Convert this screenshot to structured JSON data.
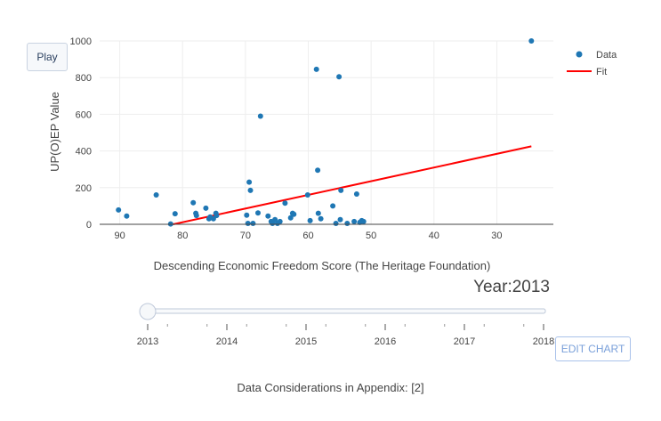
{
  "controls": {
    "play_label": "Play",
    "edit_chart_label": "EDIT CHART"
  },
  "footnote": "Data Considerations in Appendix: [2]",
  "slider": {
    "current_label": "Year:2013",
    "ticks": [
      "2013",
      "2014",
      "2015",
      "2016",
      "2017",
      "2018"
    ],
    "value": "2013"
  },
  "chart_data": {
    "type": "scatter",
    "xlabel": "Descending Economic Freedom Score (The Heritage Foundation)",
    "ylabel": "UP(O)EP Value",
    "xlim": [
      93.2,
      21
    ],
    "ylim": [
      0,
      1000
    ],
    "x_reversed": true,
    "grid": true,
    "legend_position": "top-right",
    "x_ticks": [
      90,
      80,
      70,
      60,
      50,
      40,
      30
    ],
    "y_ticks": [
      0,
      200,
      400,
      600,
      800,
      1000
    ],
    "colors": {
      "data": "#1f77b4",
      "fit": "#ff0000"
    },
    "series": [
      {
        "name": "Data",
        "mode": "markers",
        "points": [
          [
            90.2,
            78
          ],
          [
            88.9,
            45
          ],
          [
            84.2,
            160
          ],
          [
            81.9,
            2
          ],
          [
            81.2,
            58
          ],
          [
            78.3,
            118
          ],
          [
            77.9,
            60
          ],
          [
            77.8,
            48
          ],
          [
            76.3,
            88
          ],
          [
            75.8,
            30
          ],
          [
            75.6,
            40
          ],
          [
            75.1,
            30
          ],
          [
            74.7,
            60
          ],
          [
            74.6,
            48
          ],
          [
            69.8,
            50
          ],
          [
            69.6,
            5
          ],
          [
            69.4,
            230
          ],
          [
            69.2,
            185
          ],
          [
            68.8,
            5
          ],
          [
            68.0,
            62
          ],
          [
            67.6,
            590
          ],
          [
            66.4,
            45
          ],
          [
            65.9,
            15
          ],
          [
            65.7,
            5
          ],
          [
            65.3,
            25
          ],
          [
            64.5,
            15
          ],
          [
            64.9,
            5
          ],
          [
            63.7,
            115
          ],
          [
            62.8,
            35
          ],
          [
            62.5,
            60
          ],
          [
            62.3,
            55
          ],
          [
            60.1,
            160
          ],
          [
            59.7,
            20
          ],
          [
            58.7,
            845
          ],
          [
            58.5,
            295
          ],
          [
            58.4,
            60
          ],
          [
            58.0,
            30
          ],
          [
            56.1,
            100
          ],
          [
            55.6,
            5
          ],
          [
            55.1,
            805
          ],
          [
            54.9,
            25
          ],
          [
            54.8,
            185
          ],
          [
            53.8,
            5
          ],
          [
            52.7,
            15
          ],
          [
            52.3,
            165
          ],
          [
            51.8,
            10
          ],
          [
            51.5,
            20
          ],
          [
            51.2,
            15
          ],
          [
            24.5,
            1000
          ]
        ]
      },
      {
        "name": "Fit",
        "mode": "line",
        "points": [
          [
            81.5,
            0
          ],
          [
            24.5,
            425
          ]
        ]
      }
    ]
  }
}
